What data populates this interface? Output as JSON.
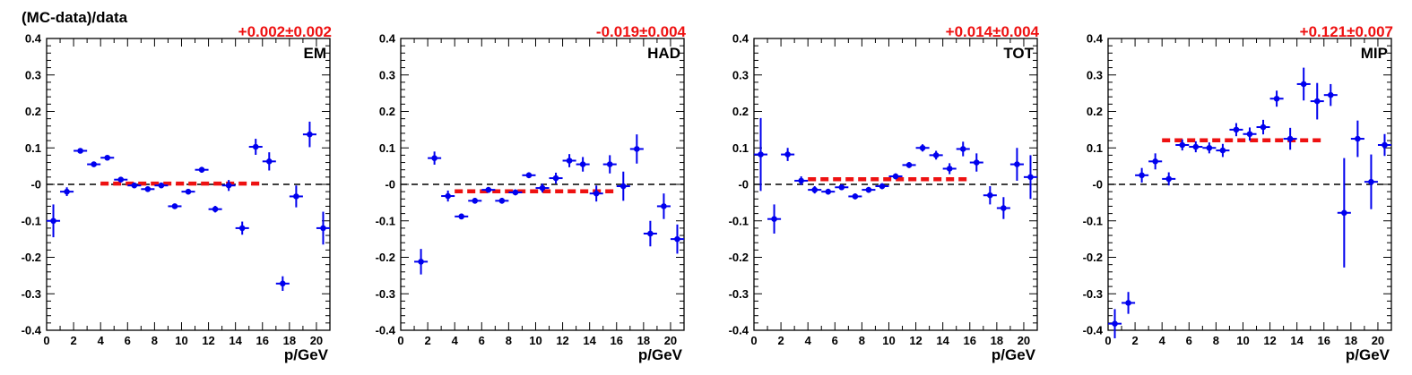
{
  "figure": {
    "ytitle": "(MC-data)/data",
    "colors": {
      "points": "#0000ee",
      "fit": "#ee1111",
      "fit_text": "#ee1111",
      "zero_line": "#000000"
    }
  },
  "chart_data": [
    {
      "type": "scatter",
      "panel_label": "EM",
      "fit_text": "+0.002±0.002",
      "xlabel": "p/GeV",
      "ylabel": "",
      "xlim": [
        0,
        21
      ],
      "ylim": [
        -0.4,
        0.4
      ],
      "x_ticks": [
        0,
        2,
        4,
        6,
        8,
        10,
        12,
        14,
        16,
        18,
        20
      ],
      "y_ticks": [
        "-0.4",
        "-0.3",
        "-0.2",
        "-0.1",
        "-0",
        "0.1",
        "0.2",
        "0.3",
        "0.4"
      ],
      "reference_line_y": 0,
      "fit": {
        "value": 0.002,
        "x_from": 4,
        "x_to": 16
      },
      "points": [
        {
          "x": 0.5,
          "y": -0.1,
          "err": 0.045
        },
        {
          "x": 1.5,
          "y": -0.02,
          "err": 0.012
        },
        {
          "x": 2.5,
          "y": 0.092,
          "err": 0.006
        },
        {
          "x": 3.5,
          "y": 0.055,
          "err": 0.005
        },
        {
          "x": 4.5,
          "y": 0.073,
          "err": 0.005
        },
        {
          "x": 5.5,
          "y": 0.013,
          "err": 0.006
        },
        {
          "x": 6.5,
          "y": -0.003,
          "err": 0.005
        },
        {
          "x": 7.5,
          "y": -0.013,
          "err": 0.006
        },
        {
          "x": 8.5,
          "y": -0.003,
          "err": 0.005
        },
        {
          "x": 9.5,
          "y": -0.06,
          "err": 0.005
        },
        {
          "x": 10.5,
          "y": -0.02,
          "err": 0.006
        },
        {
          "x": 11.5,
          "y": 0.04,
          "err": 0.008
        },
        {
          "x": 12.5,
          "y": -0.068,
          "err": 0.009
        },
        {
          "x": 13.5,
          "y": -0.003,
          "err": 0.015
        },
        {
          "x": 14.5,
          "y": -0.12,
          "err": 0.018
        },
        {
          "x": 15.5,
          "y": 0.103,
          "err": 0.022
        },
        {
          "x": 16.5,
          "y": 0.063,
          "err": 0.025
        },
        {
          "x": 17.5,
          "y": -0.272,
          "err": 0.02
        },
        {
          "x": 18.5,
          "y": -0.033,
          "err": 0.03
        },
        {
          "x": 19.5,
          "y": 0.137,
          "err": 0.035
        },
        {
          "x": 20.5,
          "y": -0.12,
          "err": 0.045
        }
      ]
    },
    {
      "type": "scatter",
      "panel_label": "HAD",
      "fit_text": "-0.019±0.004",
      "xlabel": "p/GeV",
      "ylabel": "",
      "xlim": [
        0,
        21
      ],
      "ylim": [
        -0.4,
        0.4
      ],
      "x_ticks": [
        0,
        2,
        4,
        6,
        8,
        10,
        12,
        14,
        16,
        18,
        20
      ],
      "y_ticks": [
        "-0.4",
        "-0.3",
        "-0.2",
        "-0.1",
        "-0",
        "0.1",
        "0.2",
        "0.3",
        "0.4"
      ],
      "reference_line_y": 0,
      "fit": {
        "value": -0.019,
        "x_from": 4,
        "x_to": 16
      },
      "points": [
        {
          "x": 1.5,
          "y": -0.212,
          "err": 0.035
        },
        {
          "x": 2.5,
          "y": 0.072,
          "err": 0.018
        },
        {
          "x": 3.5,
          "y": -0.032,
          "err": 0.015
        },
        {
          "x": 4.5,
          "y": -0.088,
          "err": 0.008
        },
        {
          "x": 5.5,
          "y": -0.045,
          "err": 0.008
        },
        {
          "x": 6.5,
          "y": -0.015,
          "err": 0.008
        },
        {
          "x": 7.5,
          "y": -0.045,
          "err": 0.008
        },
        {
          "x": 8.5,
          "y": -0.022,
          "err": 0.008
        },
        {
          "x": 9.5,
          "y": 0.025,
          "err": 0.008
        },
        {
          "x": 10.5,
          "y": -0.01,
          "err": 0.012
        },
        {
          "x": 11.5,
          "y": 0.017,
          "err": 0.015
        },
        {
          "x": 12.5,
          "y": 0.065,
          "err": 0.018
        },
        {
          "x": 13.5,
          "y": 0.055,
          "err": 0.02
        },
        {
          "x": 14.5,
          "y": -0.025,
          "err": 0.022
        },
        {
          "x": 15.5,
          "y": 0.055,
          "err": 0.025
        },
        {
          "x": 16.5,
          "y": -0.005,
          "err": 0.04
        },
        {
          "x": 17.5,
          "y": 0.097,
          "err": 0.04
        },
        {
          "x": 18.5,
          "y": -0.135,
          "err": 0.035
        },
        {
          "x": 19.5,
          "y": -0.06,
          "err": 0.035
        },
        {
          "x": 20.5,
          "y": -0.15,
          "err": 0.04
        }
      ]
    },
    {
      "type": "scatter",
      "panel_label": "TOT",
      "fit_text": "+0.014±0.004",
      "xlabel": "p/GeV",
      "ylabel": "",
      "xlim": [
        0,
        21
      ],
      "ylim": [
        -0.4,
        0.4
      ],
      "x_ticks": [
        0,
        2,
        4,
        6,
        8,
        10,
        12,
        14,
        16,
        18,
        20
      ],
      "y_ticks": [
        "-0.4",
        "-0.3",
        "-0.2",
        "-0.1",
        "-0",
        "0.1",
        "0.2",
        "0.3",
        "0.4"
      ],
      "reference_line_y": 0,
      "fit": {
        "value": 0.014,
        "x_from": 4,
        "x_to": 16
      },
      "points": [
        {
          "x": 0.5,
          "y": 0.082,
          "err": 0.1
        },
        {
          "x": 1.5,
          "y": -0.095,
          "err": 0.04
        },
        {
          "x": 2.5,
          "y": 0.082,
          "err": 0.018
        },
        {
          "x": 3.5,
          "y": 0.01,
          "err": 0.012
        },
        {
          "x": 4.5,
          "y": -0.015,
          "err": 0.01
        },
        {
          "x": 5.5,
          "y": -0.02,
          "err": 0.008
        },
        {
          "x": 6.5,
          "y": -0.008,
          "err": 0.008
        },
        {
          "x": 7.5,
          "y": -0.033,
          "err": 0.008
        },
        {
          "x": 8.5,
          "y": -0.015,
          "err": 0.008
        },
        {
          "x": 9.5,
          "y": -0.005,
          "err": 0.008
        },
        {
          "x": 10.5,
          "y": 0.022,
          "err": 0.008
        },
        {
          "x": 11.5,
          "y": 0.053,
          "err": 0.008
        },
        {
          "x": 12.5,
          "y": 0.1,
          "err": 0.01
        },
        {
          "x": 13.5,
          "y": 0.08,
          "err": 0.012
        },
        {
          "x": 14.5,
          "y": 0.043,
          "err": 0.015
        },
        {
          "x": 15.5,
          "y": 0.097,
          "err": 0.02
        },
        {
          "x": 16.5,
          "y": 0.06,
          "err": 0.025
        },
        {
          "x": 17.5,
          "y": -0.03,
          "err": 0.025
        },
        {
          "x": 18.5,
          "y": -0.065,
          "err": 0.03
        },
        {
          "x": 19.5,
          "y": 0.055,
          "err": 0.045
        },
        {
          "x": 20.5,
          "y": 0.02,
          "err": 0.06
        }
      ]
    },
    {
      "type": "scatter",
      "panel_label": "MIP",
      "fit_text": "+0.121±0.007",
      "xlabel": "p/GeV",
      "ylabel": "",
      "xlim": [
        0,
        21
      ],
      "ylim": [
        -0.4,
        0.4
      ],
      "x_ticks": [
        0,
        2,
        4,
        6,
        8,
        10,
        12,
        14,
        16,
        18,
        20
      ],
      "y_ticks": [
        "-0.4",
        "-0.3",
        "-0.2",
        "-0.1",
        "-0",
        "0.1",
        "0.2",
        "0.3",
        "0.4"
      ],
      "reference_line_y": 0,
      "fit": {
        "value": 0.121,
        "x_from": 4,
        "x_to": 16
      },
      "points": [
        {
          "x": 0.5,
          "y": -0.382,
          "err": 0.04
        },
        {
          "x": 1.5,
          "y": -0.325,
          "err": 0.03
        },
        {
          "x": 2.5,
          "y": 0.025,
          "err": 0.02
        },
        {
          "x": 3.5,
          "y": 0.063,
          "err": 0.022
        },
        {
          "x": 4.5,
          "y": 0.015,
          "err": 0.018
        },
        {
          "x": 5.5,
          "y": 0.108,
          "err": 0.015
        },
        {
          "x": 6.5,
          "y": 0.103,
          "err": 0.015
        },
        {
          "x": 7.5,
          "y": 0.1,
          "err": 0.015
        },
        {
          "x": 8.5,
          "y": 0.093,
          "err": 0.018
        },
        {
          "x": 9.5,
          "y": 0.15,
          "err": 0.018
        },
        {
          "x": 10.5,
          "y": 0.138,
          "err": 0.018
        },
        {
          "x": 11.5,
          "y": 0.157,
          "err": 0.02
        },
        {
          "x": 12.5,
          "y": 0.235,
          "err": 0.022
        },
        {
          "x": 13.5,
          "y": 0.125,
          "err": 0.03
        },
        {
          "x": 14.5,
          "y": 0.275,
          "err": 0.045
        },
        {
          "x": 15.5,
          "y": 0.228,
          "err": 0.05
        },
        {
          "x": 16.5,
          "y": 0.245,
          "err": 0.03
        },
        {
          "x": 17.5,
          "y": -0.078,
          "err": 0.15
        },
        {
          "x": 18.5,
          "y": 0.125,
          "err": 0.05
        },
        {
          "x": 19.5,
          "y": 0.007,
          "err": 0.075
        },
        {
          "x": 20.5,
          "y": 0.108,
          "err": 0.03
        }
      ]
    }
  ]
}
